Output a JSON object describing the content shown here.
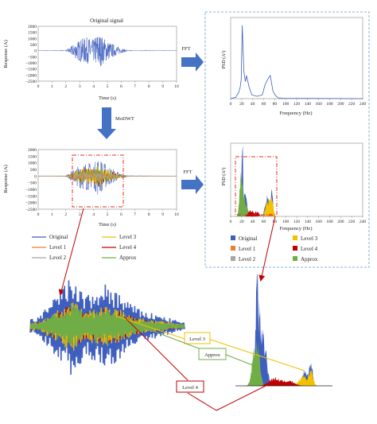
{
  "colors": {
    "original": "#3f5fbf",
    "level1": "#ed7d31",
    "level2": "#a5a5a5",
    "level3": "#f2c200",
    "level4": "#c00000",
    "approx": "#70ad47",
    "arrow": "#4472c4",
    "dashbox": "#5b9bd5",
    "highlight": "#e03020"
  },
  "labels": {
    "original_signal": "Original signal",
    "fft_top": "FFT",
    "fft_bottom": "FFT",
    "modwt": "MoDWT",
    "callout_level3": "Level 3",
    "callout_approx": "Approx",
    "callout_level4": "Level 4"
  },
  "legend_time": [
    "Original",
    "Level 3",
    "Level 1",
    "Level 4",
    "Level 2",
    "Approx"
  ],
  "legend_freq": [
    "Original",
    "Level 3",
    "Level 1",
    "Level 4",
    "Level 2",
    "Approx"
  ],
  "chart_data": [
    {
      "type": "line",
      "title": "Original signal",
      "xlabel": "Time (s)",
      "ylabel": "Response (A)",
      "xlim": [
        0,
        10
      ],
      "ylim": [
        -2500,
        2000
      ],
      "xticks": [
        "0",
        "1",
        "2",
        "3",
        "4",
        "5",
        "6",
        "7",
        "8",
        "9",
        "10"
      ],
      "yticks": [
        "2000",
        "1500",
        "1000",
        "500",
        "0",
        "−500",
        "−1000",
        "−1500",
        "−2000",
        "−2500"
      ],
      "series": [
        {
          "name": "Original",
          "envelope_t": [
            0,
            2,
            2.3,
            3,
            3.5,
            4,
            4.3,
            5,
            5.5,
            6,
            6.5,
            10
          ],
          "envelope_amp": [
            20,
            30,
            300,
            900,
            1100,
            900,
            1500,
            800,
            500,
            200,
            40,
            15
          ]
        }
      ]
    },
    {
      "type": "line",
      "xlabel": "Frequency (Hz)",
      "ylabel": "PSD (A²)",
      "xlim": [
        0,
        250
      ],
      "xticks": [
        "0",
        "20",
        "40",
        "60",
        "80",
        "100",
        "120",
        "140",
        "160",
        "180",
        "200",
        "220",
        "240"
      ],
      "series": [
        {
          "name": "Original",
          "x": [
            0,
            10,
            15,
            18,
            20,
            22,
            25,
            28,
            30,
            35,
            40,
            50,
            60,
            65,
            70,
            75,
            80,
            85,
            90,
            100,
            250
          ],
          "y": [
            0,
            0.02,
            0.08,
            0.15,
            0.25,
            0.95,
            0.35,
            0.22,
            0.3,
            0.15,
            0.05,
            0.03,
            0.05,
            0.18,
            0.25,
            0.3,
            0.1,
            0.04,
            0.01,
            0.005,
            0
          ]
        }
      ]
    },
    {
      "type": "line",
      "xlabel": "Time (s)",
      "ylabel": "Response (A)",
      "xlim": [
        0,
        10
      ],
      "ylim": [
        -2500,
        2000
      ],
      "xticks": [
        "0",
        "1",
        "2",
        "3",
        "4",
        "5",
        "6",
        "7",
        "8",
        "9",
        "10"
      ],
      "yticks": [
        "2000",
        "1500",
        "1000",
        "500",
        "0",
        "−500",
        "−1000",
        "−1500",
        "−2000",
        "−2500"
      ],
      "series": [
        {
          "name": "Original"
        },
        {
          "name": "Level 1"
        },
        {
          "name": "Level 2"
        },
        {
          "name": "Level 3"
        },
        {
          "name": "Level 4"
        },
        {
          "name": "Approx"
        }
      ]
    },
    {
      "type": "area",
      "xlabel": "Frequency (Hz)",
      "ylabel": "PSD (A²)",
      "xlim": [
        0,
        250
      ],
      "xticks": [
        "0",
        "20",
        "40",
        "60",
        "80",
        "100",
        "120",
        "140",
        "160",
        "180",
        "200",
        "220",
        "240"
      ],
      "series": [
        {
          "name": "Original"
        },
        {
          "name": "Level 1"
        },
        {
          "name": "Level 2"
        },
        {
          "name": "Level 3"
        },
        {
          "name": "Level 4"
        },
        {
          "name": "Approx"
        }
      ]
    }
  ]
}
